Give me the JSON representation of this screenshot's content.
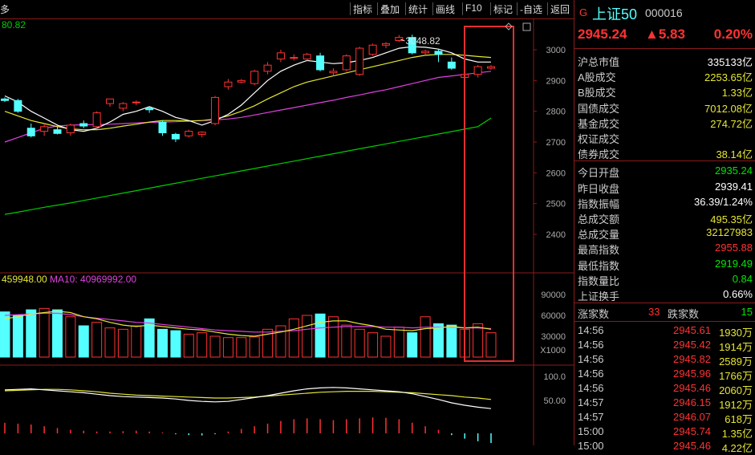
{
  "toolbar": {
    "partial_left": "多",
    "buttons": [
      "指标",
      "叠加",
      "统计",
      "画线",
      "F10",
      "标记",
      "-自选",
      "返回"
    ]
  },
  "chart": {
    "ma_top_partial": "80.82",
    "peak_label": "3048.82",
    "vol_ma_partial": "459948.00",
    "vol_ma10_label": "MA10: 40969992.00",
    "vol_unit": "X1000"
  },
  "chart_data": {
    "type": "candlestick",
    "price_axis_ticks": [
      "3000",
      "2900",
      "2800",
      "2700",
      "2600",
      "2500",
      "2400"
    ],
    "volume_axis_ticks": [
      "90000",
      "60000",
      "30000"
    ],
    "indicator_axis_ticks": [
      "100.0",
      "50.00"
    ],
    "candles": [
      {
        "o": 2840,
        "h": 2845,
        "l": 2830,
        "c": 2835
      },
      {
        "o": 2835,
        "h": 2840,
        "l": 2795,
        "c": 2800
      },
      {
        "o": 2745,
        "h": 2760,
        "l": 2715,
        "c": 2720
      },
      {
        "o": 2735,
        "h": 2760,
        "l": 2720,
        "c": 2750
      },
      {
        "o": 2740,
        "h": 2750,
        "l": 2725,
        "c": 2728
      },
      {
        "o": 2730,
        "h": 2760,
        "l": 2720,
        "c": 2755
      },
      {
        "o": 2760,
        "h": 2770,
        "l": 2745,
        "c": 2752
      },
      {
        "o": 2750,
        "h": 2800,
        "l": 2745,
        "c": 2795
      },
      {
        "o": 2825,
        "h": 2840,
        "l": 2815,
        "c": 2840
      },
      {
        "o": 2810,
        "h": 2830,
        "l": 2800,
        "c": 2825
      },
      {
        "o": 2830,
        "h": 2835,
        "l": 2820,
        "c": 2830
      },
      {
        "o": 2810,
        "h": 2815,
        "l": 2795,
        "c": 2805
      },
      {
        "o": 2765,
        "h": 2770,
        "l": 2720,
        "c": 2730
      },
      {
        "o": 2725,
        "h": 2730,
        "l": 2700,
        "c": 2710
      },
      {
        "o": 2720,
        "h": 2740,
        "l": 2715,
        "c": 2735
      },
      {
        "o": 2725,
        "h": 2735,
        "l": 2715,
        "c": 2732
      },
      {
        "o": 2760,
        "h": 2850,
        "l": 2755,
        "c": 2845
      },
      {
        "o": 2880,
        "h": 2905,
        "l": 2870,
        "c": 2895
      },
      {
        "o": 2895,
        "h": 2905,
        "l": 2890,
        "c": 2900
      },
      {
        "o": 2890,
        "h": 2935,
        "l": 2885,
        "c": 2930
      },
      {
        "o": 2930,
        "h": 2960,
        "l": 2920,
        "c": 2950
      },
      {
        "o": 2970,
        "h": 3000,
        "l": 2960,
        "c": 2990
      },
      {
        "o": 2975,
        "h": 2985,
        "l": 2965,
        "c": 2975
      },
      {
        "o": 2970,
        "h": 2990,
        "l": 2965,
        "c": 2985
      },
      {
        "o": 2980,
        "h": 2990,
        "l": 2930,
        "c": 2935
      },
      {
        "o": 2925,
        "h": 2940,
        "l": 2915,
        "c": 2930
      },
      {
        "o": 2935,
        "h": 2985,
        "l": 2930,
        "c": 2980
      },
      {
        "o": 2920,
        "h": 3010,
        "l": 2915,
        "c": 3005
      },
      {
        "o": 2985,
        "h": 3020,
        "l": 2980,
        "c": 3015
      },
      {
        "o": 3015,
        "h": 3025,
        "l": 3005,
        "c": 3020
      },
      {
        "o": 3030,
        "h": 3048,
        "l": 3025,
        "c": 3040
      },
      {
        "o": 3040,
        "h": 3049,
        "l": 2985,
        "c": 2990
      },
      {
        "o": 2990,
        "h": 3000,
        "l": 2982,
        "c": 2995
      },
      {
        "o": 2995,
        "h": 3000,
        "l": 2960,
        "c": 2985
      },
      {
        "o": 2960,
        "h": 2975,
        "l": 2935,
        "c": 2940
      },
      {
        "o": 2910,
        "h": 2925,
        "l": 2905,
        "c": 2920
      },
      {
        "o": 2920,
        "h": 2950,
        "l": 2910,
        "c": 2945
      },
      {
        "o": 2940,
        "h": 2950,
        "l": 2935,
        "c": 2945
      }
    ],
    "ma5": [
      2850,
      2830,
      2800,
      2778,
      2755,
      2740,
      2735,
      2745,
      2765,
      2790,
      2800,
      2815,
      2800,
      2780,
      2770,
      2755,
      2770,
      2790,
      2820,
      2860,
      2900,
      2930,
      2950,
      2965,
      2960,
      2955,
      2958,
      2965,
      2975,
      2990,
      3005,
      3010,
      3008,
      3002,
      2990,
      2970,
      2960,
      2960
    ],
    "ma10": [
      2800,
      2785,
      2770,
      2760,
      2750,
      2743,
      2740,
      2740,
      2745,
      2752,
      2758,
      2765,
      2770,
      2770,
      2768,
      2770,
      2775,
      2785,
      2800,
      2818,
      2840,
      2860,
      2880,
      2895,
      2905,
      2915,
      2925,
      2935,
      2945,
      2955,
      2965,
      2975,
      2982,
      2985,
      2985,
      2982,
      2978,
      2975
    ],
    "ma20": [
      2700,
      2715,
      2730,
      2745,
      2752,
      2755,
      2756,
      2757,
      2758,
      2760,
      2762,
      2764,
      2765,
      2766,
      2768,
      2770,
      2772,
      2775,
      2780,
      2788,
      2796,
      2804,
      2812,
      2820,
      2828,
      2836,
      2845,
      2853,
      2862,
      2870,
      2880,
      2890,
      2900,
      2910,
      2915,
      2920,
      2925,
      2930
    ],
    "ma60": [
      2465,
      2472,
      2480,
      2488,
      2495,
      2502,
      2510,
      2518,
      2526,
      2534,
      2542,
      2550,
      2558,
      2566,
      2574,
      2582,
      2590,
      2598,
      2606,
      2614,
      2622,
      2630,
      2638,
      2646,
      2654,
      2662,
      2670,
      2678,
      2686,
      2694,
      2702,
      2710,
      2718,
      2726,
      2734,
      2742,
      2750,
      2778
    ],
    "volume": [
      65000,
      60000,
      68000,
      70000,
      68000,
      58000,
      45000,
      50000,
      42000,
      40000,
      45000,
      55000,
      40000,
      38000,
      33000,
      35000,
      30000,
      28000,
      28000,
      29000,
      40000,
      45000,
      55000,
      60000,
      62000,
      58000,
      46000,
      40000,
      35000,
      30000,
      43000,
      35000,
      58000,
      48000,
      46000,
      40000,
      48000,
      35000
    ],
    "vol_ma5": [
      55000,
      58000,
      62000,
      64000,
      66000,
      64000,
      58000,
      55000,
      50000,
      46000,
      44000,
      46000,
      44000,
      42000,
      40000,
      39000,
      36000,
      33000,
      31000,
      30000,
      33000,
      36000,
      40000,
      45000,
      50000,
      52000,
      52000,
      48000,
      45000,
      40000,
      39000,
      38000,
      41000,
      42000,
      44000,
      42000,
      43000,
      40000
    ],
    "vol_ma10": [
      60000,
      61000,
      62000,
      63000,
      63000,
      61000,
      58000,
      56000,
      54000,
      52000,
      50000,
      49000,
      47000,
      45000,
      43000,
      41000,
      39000,
      38000,
      37000,
      36000,
      36000,
      37000,
      38000,
      40000,
      42000,
      43000,
      44000,
      44000,
      44000,
      43000,
      43000,
      42000,
      43000,
      43000,
      43000,
      42000,
      42000,
      41000
    ],
    "ind_white": [
      72,
      73,
      74,
      72,
      70,
      68,
      66,
      63,
      60,
      58,
      57,
      56,
      55,
      53,
      50,
      48,
      47,
      48,
      52,
      56,
      60,
      65,
      70,
      74,
      76,
      77,
      76,
      74,
      72,
      70,
      68,
      64,
      58,
      52,
      45,
      40,
      36,
      33
    ],
    "ind_yellow": [
      70,
      71,
      72,
      73,
      73,
      72,
      70,
      68,
      65,
      63,
      61,
      60,
      59,
      58,
      57,
      56,
      55,
      55,
      56,
      57,
      59,
      61,
      63,
      65,
      67,
      68,
      69,
      69,
      69,
      68,
      67,
      66,
      64,
      62,
      60,
      57,
      55,
      52
    ],
    "macd": [
      0.6,
      0.55,
      0.5,
      0.4,
      0.3,
      0.2,
      0.15,
      0.1,
      0.1,
      0.12,
      0.15,
      0.1,
      0.05,
      -0.05,
      -0.1,
      -0.12,
      -0.05,
      0.1,
      0.25,
      0.4,
      0.55,
      0.7,
      0.8,
      0.85,
      0.8,
      0.75,
      0.8,
      0.85,
      0.9,
      0.88,
      0.8,
      0.6,
      0.4,
      0.2,
      -0.1,
      -0.3,
      -0.45,
      -0.55
    ]
  },
  "panel": {
    "g_mark": "G",
    "name": "上证50",
    "code": "000016",
    "price": "2945.24",
    "change": "▲5.83",
    "change_pct": "0.20%",
    "stats": [
      {
        "k": "沪总市值",
        "v": "335133亿",
        "c": "white"
      },
      {
        "k": "A股成交",
        "v": "2253.65亿",
        "c": "yellow"
      },
      {
        "k": "B股成交",
        "v": "1.33亿",
        "c": "yellow"
      },
      {
        "k": "国债成交",
        "v": "7012.08亿",
        "c": "yellow"
      },
      {
        "k": "基金成交",
        "v": "274.72亿",
        "c": "yellow"
      },
      {
        "k": "权证成交",
        "v": "",
        "c": "yellow"
      },
      {
        "k": "债券成交",
        "v": "38.14亿",
        "c": "yellow"
      }
    ],
    "stats2": [
      {
        "k": "今日开盘",
        "v": "2935.24",
        "c": "green"
      },
      {
        "k": "昨日收盘",
        "v": "2939.41",
        "c": "white"
      },
      {
        "k": "指数振幅",
        "v": "36.39/1.24%",
        "c": "white"
      },
      {
        "k": "总成交额",
        "v": "495.35亿",
        "c": "yellow"
      },
      {
        "k": "总成交量",
        "v": "32127983",
        "c": "yellow"
      },
      {
        "k": "最高指数",
        "v": "2955.88",
        "c": "red"
      },
      {
        "k": "最低指数",
        "v": "2919.49",
        "c": "green"
      },
      {
        "k": "指数量比",
        "v": "0.84",
        "c": "green"
      },
      {
        "k": "上证换手",
        "v": "0.66%",
        "c": "white"
      }
    ],
    "up_label": "涨家数",
    "up_count": "33",
    "down_label": "跌家数",
    "down_count": "15",
    "ticks": [
      {
        "t": "14:56",
        "p": "2945.61",
        "v": "1930万"
      },
      {
        "t": "14:56",
        "p": "2945.42",
        "v": "1914万"
      },
      {
        "t": "14:56",
        "p": "2945.82",
        "v": "2589万"
      },
      {
        "t": "14:56",
        "p": "2945.96",
        "v": "1766万"
      },
      {
        "t": "14:56",
        "p": "2945.46",
        "v": "2060万"
      },
      {
        "t": "14:57",
        "p": "2946.15",
        "v": "1912万"
      },
      {
        "t": "14:57",
        "p": "2946.07",
        "v": "618万"
      },
      {
        "t": "15:00",
        "p": "2945.74",
        "v": "1.35亿"
      },
      {
        "t": "15:00",
        "p": "2945.46",
        "v": "4.22亿"
      }
    ]
  },
  "colors": {
    "up": "#ff3232",
    "down": "#54ffff",
    "ma5": "#ffffff",
    "ma10": "#e6e632",
    "ma20": "#e040e0",
    "ma60": "#00cc00",
    "frame": "#8b1a1a",
    "highlight": "#e03030"
  }
}
